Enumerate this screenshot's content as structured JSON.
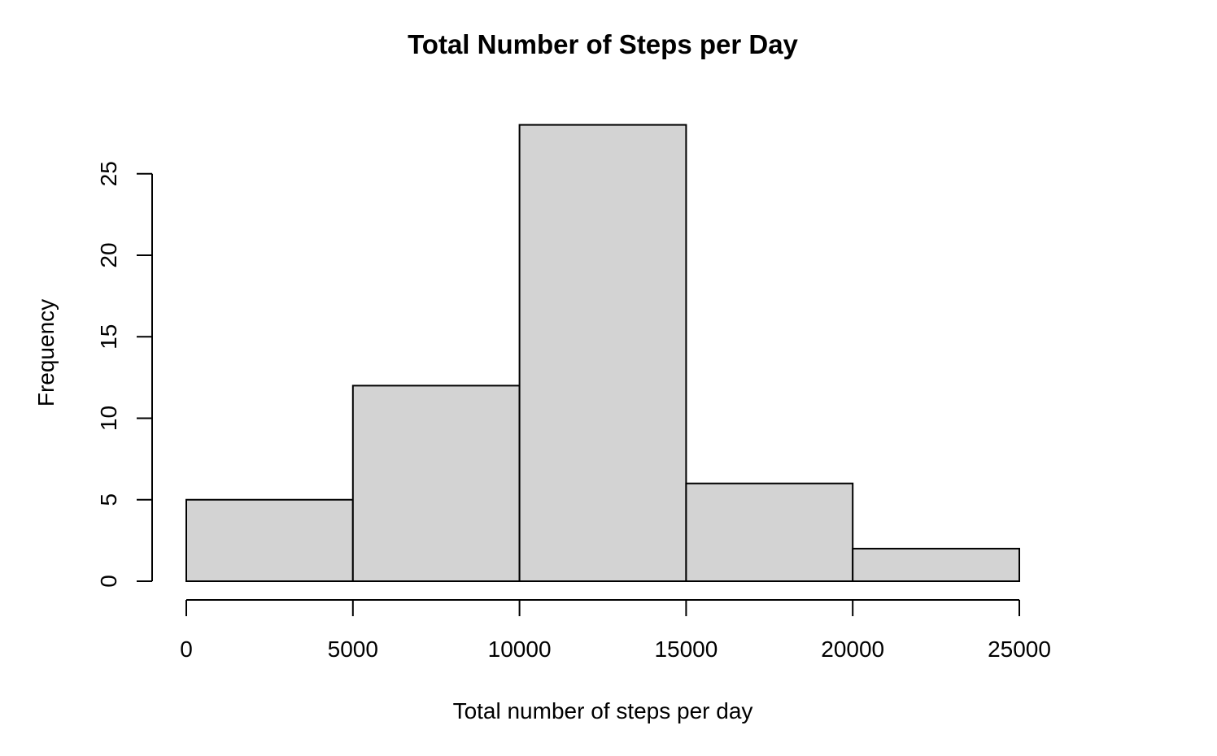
{
  "chart_data": {
    "type": "bar",
    "subtype": "histogram",
    "title": "Total Number of Steps per Day",
    "xlabel": "Total number of steps per day",
    "ylabel": "Frequency",
    "bins": [
      {
        "start": 0,
        "end": 5000,
        "count": 5
      },
      {
        "start": 5000,
        "end": 10000,
        "count": 12
      },
      {
        "start": 10000,
        "end": 15000,
        "count": 28
      },
      {
        "start": 15000,
        "end": 20000,
        "count": 6
      },
      {
        "start": 20000,
        "end": 25000,
        "count": 2
      }
    ],
    "xticks": [
      "0",
      "5000",
      "10000",
      "15000",
      "20000",
      "25000"
    ],
    "yticks": [
      "0",
      "5",
      "10",
      "15",
      "20",
      "25"
    ],
    "xlim": [
      0,
      25000
    ],
    "ylim": [
      0,
      28
    ],
    "grid": false,
    "bar_fill": "#d3d3d3",
    "bar_stroke": "#000000"
  }
}
